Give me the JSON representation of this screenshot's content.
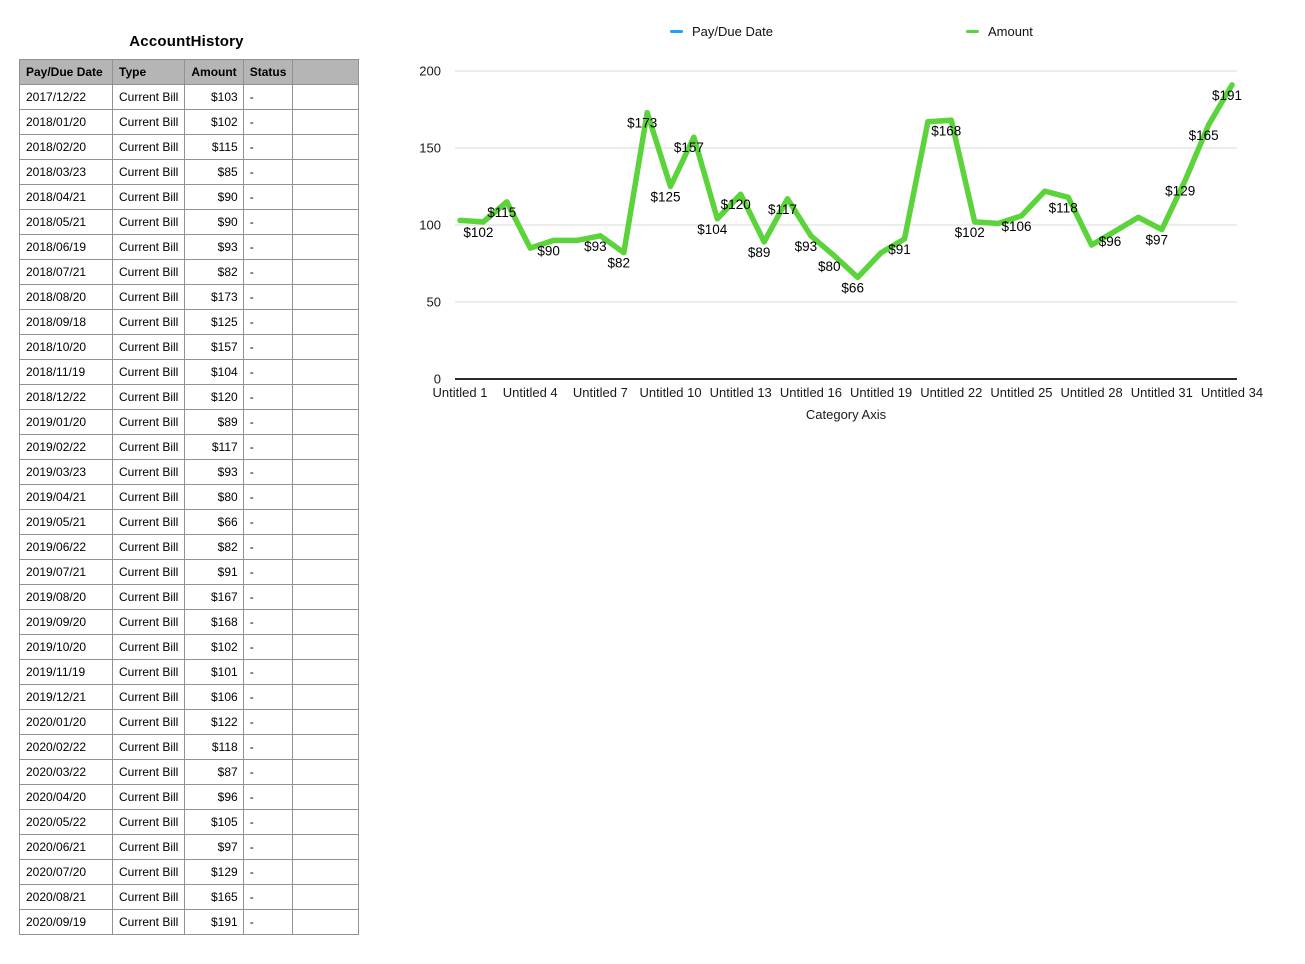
{
  "table": {
    "title": "AccountHistory",
    "columns": [
      "Pay/Due Date",
      "Type",
      "Amount",
      "Status",
      ""
    ],
    "rows": [
      [
        "2017/12/22",
        "Current Bill",
        "$103",
        "-",
        ""
      ],
      [
        "2018/01/20",
        "Current Bill",
        "$102",
        "-",
        ""
      ],
      [
        "2018/02/20",
        "Current Bill",
        "$115",
        "-",
        ""
      ],
      [
        "2018/03/23",
        "Current Bill",
        "$85",
        "-",
        ""
      ],
      [
        "2018/04/21",
        "Current Bill",
        "$90",
        "-",
        ""
      ],
      [
        "2018/05/21",
        "Current Bill",
        "$90",
        "-",
        ""
      ],
      [
        "2018/06/19",
        "Current Bill",
        "$93",
        "-",
        ""
      ],
      [
        "2018/07/21",
        "Current Bill",
        "$82",
        "-",
        ""
      ],
      [
        "2018/08/20",
        "Current Bill",
        "$173",
        "-",
        ""
      ],
      [
        "2018/09/18",
        "Current Bill",
        "$125",
        "-",
        ""
      ],
      [
        "2018/10/20",
        "Current Bill",
        "$157",
        "-",
        ""
      ],
      [
        "2018/11/19",
        "Current Bill",
        "$104",
        "-",
        ""
      ],
      [
        "2018/12/22",
        "Current Bill",
        "$120",
        "-",
        ""
      ],
      [
        "2019/01/20",
        "Current Bill",
        "$89",
        "-",
        ""
      ],
      [
        "2019/02/22",
        "Current Bill",
        "$117",
        "-",
        ""
      ],
      [
        "2019/03/23",
        "Current Bill",
        "$93",
        "-",
        ""
      ],
      [
        "2019/04/21",
        "Current Bill",
        "$80",
        "-",
        ""
      ],
      [
        "2019/05/21",
        "Current Bill",
        "$66",
        "-",
        ""
      ],
      [
        "2019/06/22",
        "Current Bill",
        "$82",
        "-",
        ""
      ],
      [
        "2019/07/21",
        "Current Bill",
        "$91",
        "-",
        ""
      ],
      [
        "2019/08/20",
        "Current Bill",
        "$167",
        "-",
        ""
      ],
      [
        "2019/09/20",
        "Current Bill",
        "$168",
        "-",
        ""
      ],
      [
        "2019/10/20",
        "Current Bill",
        "$102",
        "-",
        ""
      ],
      [
        "2019/11/19",
        "Current Bill",
        "$101",
        "-",
        ""
      ],
      [
        "2019/12/21",
        "Current Bill",
        "$106",
        "-",
        ""
      ],
      [
        "2020/01/20",
        "Current Bill",
        "$122",
        "-",
        ""
      ],
      [
        "2020/02/22",
        "Current Bill",
        "$118",
        "-",
        ""
      ],
      [
        "2020/03/22",
        "Current Bill",
        "$87",
        "-",
        ""
      ],
      [
        "2020/04/20",
        "Current Bill",
        "$96",
        "-",
        ""
      ],
      [
        "2020/05/22",
        "Current Bill",
        "$105",
        "-",
        ""
      ],
      [
        "2020/06/21",
        "Current Bill",
        "$97",
        "-",
        ""
      ],
      [
        "2020/07/20",
        "Current Bill",
        "$129",
        "-",
        ""
      ],
      [
        "2020/08/21",
        "Current Bill",
        "$165",
        "-",
        ""
      ],
      [
        "2020/09/19",
        "Current Bill",
        "$191",
        "-",
        ""
      ]
    ]
  },
  "chart": {
    "legend": [
      {
        "label": "Pay/Due Date",
        "color": "#1AA4F8"
      },
      {
        "label": "Amount",
        "color": "#5BD33A"
      }
    ]
  },
  "chart_data": {
    "type": "line",
    "title": "",
    "xlabel": "Category Axis",
    "ylabel": "",
    "ylim": [
      0,
      200
    ],
    "yticks": [
      0,
      50,
      100,
      150,
      200
    ],
    "grid": true,
    "legend_position": "top",
    "categories": [
      "Untitled 1",
      "Untitled 2",
      "Untitled 3",
      "Untitled 4",
      "Untitled 5",
      "Untitled 6",
      "Untitled 7",
      "Untitled 8",
      "Untitled 9",
      "Untitled 10",
      "Untitled 11",
      "Untitled 12",
      "Untitled 13",
      "Untitled 14",
      "Untitled 15",
      "Untitled 16",
      "Untitled 17",
      "Untitled 18",
      "Untitled 19",
      "Untitled 20",
      "Untitled 21",
      "Untitled 22",
      "Untitled 23",
      "Untitled 24",
      "Untitled 25",
      "Untitled 26",
      "Untitled 27",
      "Untitled 28",
      "Untitled 29",
      "Untitled 30",
      "Untitled 31",
      "Untitled 32",
      "Untitled 33",
      "Untitled 34"
    ],
    "x_ticks_shown": [
      "Untitled 1",
      "Untitled 4",
      "Untitled 7",
      "Untitled 10",
      "Untitled 13",
      "Untitled 16",
      "Untitled 19",
      "Untitled 22",
      "Untitled 25",
      "Untitled 28",
      "Untitled 31",
      "Untitled 34"
    ],
    "series": [
      {
        "name": "Pay/Due Date",
        "color": "#1AA4F8",
        "values": []
      },
      {
        "name": "Amount",
        "color": "#5BD33A",
        "values": [
          103,
          102,
          115,
          85,
          90,
          90,
          93,
          82,
          173,
          125,
          157,
          104,
          120,
          89,
          117,
          93,
          80,
          66,
          82,
          91,
          167,
          168,
          102,
          101,
          106,
          122,
          118,
          87,
          96,
          105,
          97,
          129,
          165,
          191
        ]
      }
    ],
    "point_label_prefix": "$",
    "point_labels_visible_indices": [
      2,
      3,
      5,
      7,
      8,
      9,
      10,
      11,
      12,
      13,
      14,
      15,
      16,
      17,
      18,
      20,
      22,
      23,
      25,
      27,
      29,
      31,
      32,
      33,
      34
    ]
  }
}
